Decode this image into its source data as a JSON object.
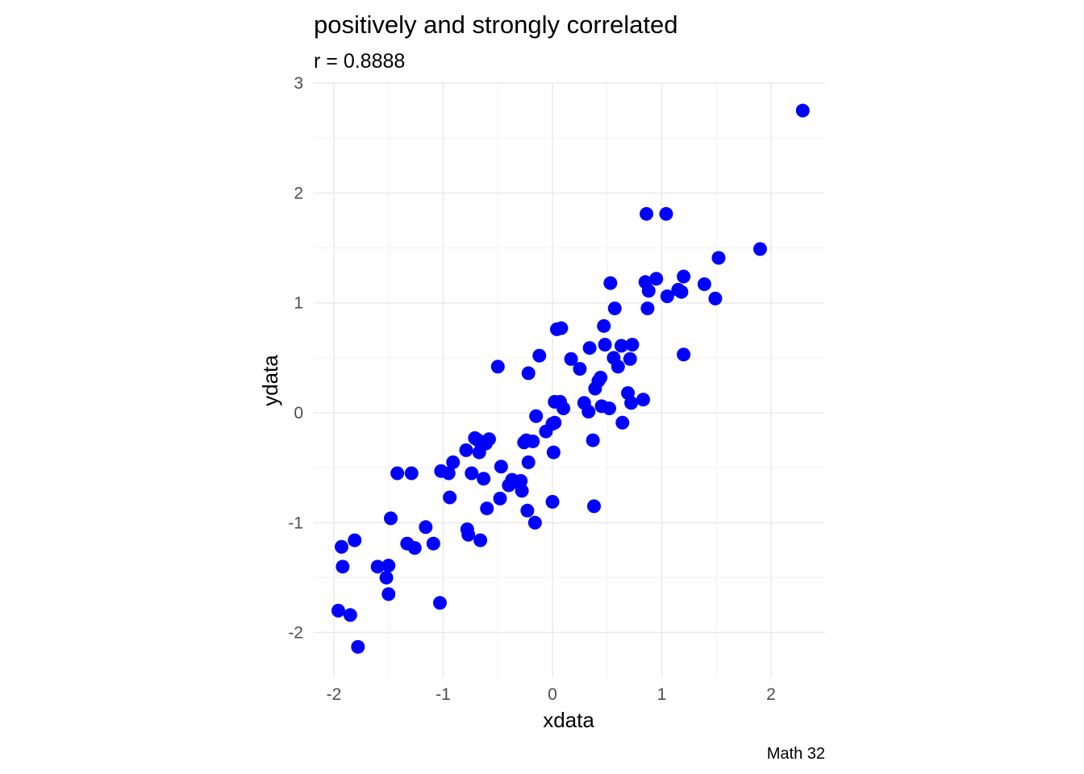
{
  "chart_data": {
    "type": "scatter",
    "title": "positively and strongly correlated",
    "subtitle": "r = 0.8888",
    "xlabel": "xdata",
    "ylabel": "ydata",
    "caption": "Math 32",
    "xlim": [
      -2.05,
      2.5
    ],
    "ylim": [
      -2.35,
      3.0
    ],
    "xticks": [
      -2,
      -1,
      0,
      1,
      2
    ],
    "xtick_labels": [
      "-2",
      "-1",
      "0",
      "1",
      "2"
    ],
    "yticks": [
      -2,
      -1,
      0,
      1,
      2,
      3
    ],
    "ytick_labels": [
      "-2",
      "-1",
      "0",
      "1",
      "2",
      "3"
    ],
    "grid": true,
    "point_color": "#0000ff",
    "series": [
      {
        "x": [
          2.29,
          1.9,
          1.52,
          1.49,
          1.39,
          1.2,
          1.2,
          1.15,
          1.18,
          1.05,
          1.04,
          0.95,
          0.86,
          0.85,
          0.88,
          0.87,
          0.83,
          0.73,
          0.72,
          0.71,
          0.69,
          0.64,
          0.63,
          0.6,
          0.56,
          0.57,
          0.53,
          0.52,
          0.47,
          0.48,
          0.45,
          0.44,
          0.42,
          0.39,
          0.37,
          0.38,
          0.34,
          0.33,
          0.29,
          0.25,
          0.17,
          0.1,
          0.08,
          0.07,
          0.04,
          0.02,
          0.01,
          0.0,
          0.02,
          0.0,
          -0.06,
          -0.12,
          -0.15,
          -0.16,
          -0.18,
          -0.23,
          -0.22,
          -0.22,
          -0.24,
          -0.26,
          -0.28,
          -0.32,
          -0.29,
          -0.37,
          -0.4,
          -0.48,
          -0.47,
          -0.5,
          -0.58,
          -0.61,
          -0.63,
          -0.6,
          -0.66,
          -0.68,
          -0.67,
          -0.71,
          -0.74,
          -0.77,
          -0.78,
          -0.79,
          -0.91,
          -0.94,
          -0.95,
          -1.02,
          -1.03,
          -1.09,
          -1.16,
          -1.26,
          -1.29,
          -1.33,
          -1.42,
          -1.48,
          -1.5,
          -1.5,
          -1.52,
          -1.6,
          -1.78,
          -1.81,
          -1.85,
          -1.92,
          -1.93,
          -1.96
        ],
        "y": [
          2.75,
          1.49,
          1.41,
          1.04,
          1.17,
          1.24,
          0.53,
          1.12,
          1.1,
          1.06,
          1.81,
          1.22,
          1.81,
          1.19,
          1.11,
          0.95,
          0.12,
          0.62,
          0.09,
          0.49,
          0.18,
          -0.09,
          0.61,
          0.42,
          0.5,
          0.95,
          1.18,
          0.04,
          0.79,
          0.62,
          0.06,
          0.32,
          0.29,
          0.22,
          -0.25,
          -0.85,
          0.59,
          0.01,
          0.09,
          0.4,
          0.49,
          0.04,
          0.77,
          0.1,
          0.76,
          0.1,
          -0.36,
          -0.81,
          -0.09,
          -0.1,
          -0.17,
          0.52,
          -0.03,
          -1.0,
          -0.26,
          -0.89,
          -0.45,
          0.36,
          -0.25,
          -0.27,
          -0.71,
          -0.63,
          -0.62,
          -0.61,
          -0.66,
          -0.78,
          -0.49,
          0.42,
          -0.24,
          -0.28,
          -0.6,
          -0.87,
          -1.16,
          -0.25,
          -0.36,
          -0.23,
          -0.55,
          -1.11,
          -1.06,
          -0.34,
          -0.45,
          -0.77,
          -0.55,
          -0.53,
          -1.73,
          -1.19,
          -1.04,
          -1.23,
          -0.55,
          -1.19,
          -0.55,
          -0.96,
          -1.39,
          -1.65,
          -1.5,
          -1.4,
          -2.13,
          -1.16,
          -1.84,
          -1.4,
          -1.22,
          -1.8
        ]
      }
    ]
  }
}
